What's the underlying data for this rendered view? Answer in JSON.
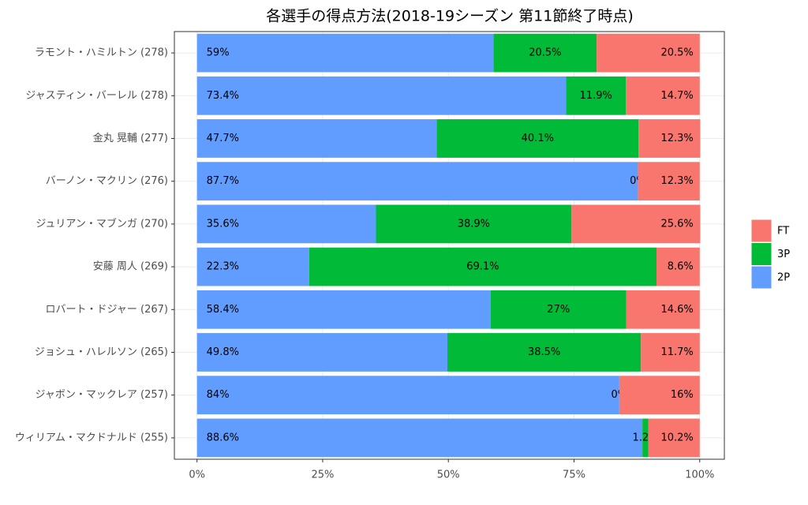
{
  "chart_data": {
    "type": "stacked_barh",
    "title": "各選手の得点方法(2018-19シーズン 第11節終了時点)",
    "categories": [
      "ラモント・ハミルトン (278)",
      "ジャスティン・バーレル (278)",
      "金丸 晃輔 (277)",
      "バーノン・マクリン (276)",
      "ジュリアン・マブンガ (270)",
      "安藤 周人 (269)",
      "ロバート・ドジャー (267)",
      "ジョシュ・ハレルソン (265)",
      "ジャボン・マックレア (257)",
      "ウィリアム・マクドナルド (255)"
    ],
    "series": [
      {
        "name": "2P",
        "color": "#619cff",
        "values": [
          59,
          73.4,
          47.7,
          87.7,
          35.6,
          22.3,
          58.4,
          49.8,
          84,
          88.6
        ],
        "value_labels": [
          "59%",
          "73.4%",
          "47.7%",
          "87.7%",
          "35.6%",
          "22.3%",
          "58.4%",
          "49.8%",
          "84%",
          "88.6%"
        ]
      },
      {
        "name": "3P",
        "color": "#00ba38",
        "values": [
          20.5,
          11.9,
          40.1,
          0,
          38.9,
          69.1,
          27,
          38.5,
          0,
          1.2
        ],
        "value_labels": [
          "20.5%",
          "11.9%",
          "40.1%",
          "0%",
          "38.9%",
          "69.1%",
          "27%",
          "38.5%",
          "0%",
          "1.2%"
        ]
      },
      {
        "name": "FT",
        "color": "#f8766d",
        "values": [
          20.5,
          14.7,
          12.3,
          12.3,
          25.6,
          8.6,
          14.6,
          11.7,
          16,
          10.2
        ],
        "value_labels": [
          "20.5%",
          "14.7%",
          "12.3%",
          "12.3%",
          "25.6%",
          "8.6%",
          "14.6%",
          "11.7%",
          "16%",
          "10.2%"
        ]
      }
    ],
    "xlim": [
      -4.5,
      104.9
    ],
    "xticks": [
      {
        "value": 0,
        "label": "0%"
      },
      {
        "value": 25,
        "label": "25%"
      },
      {
        "value": 50,
        "label": "50%"
      },
      {
        "value": 75,
        "label": "75%"
      },
      {
        "value": 100,
        "label": "100%"
      }
    ],
    "grid": true,
    "legend": "right"
  }
}
